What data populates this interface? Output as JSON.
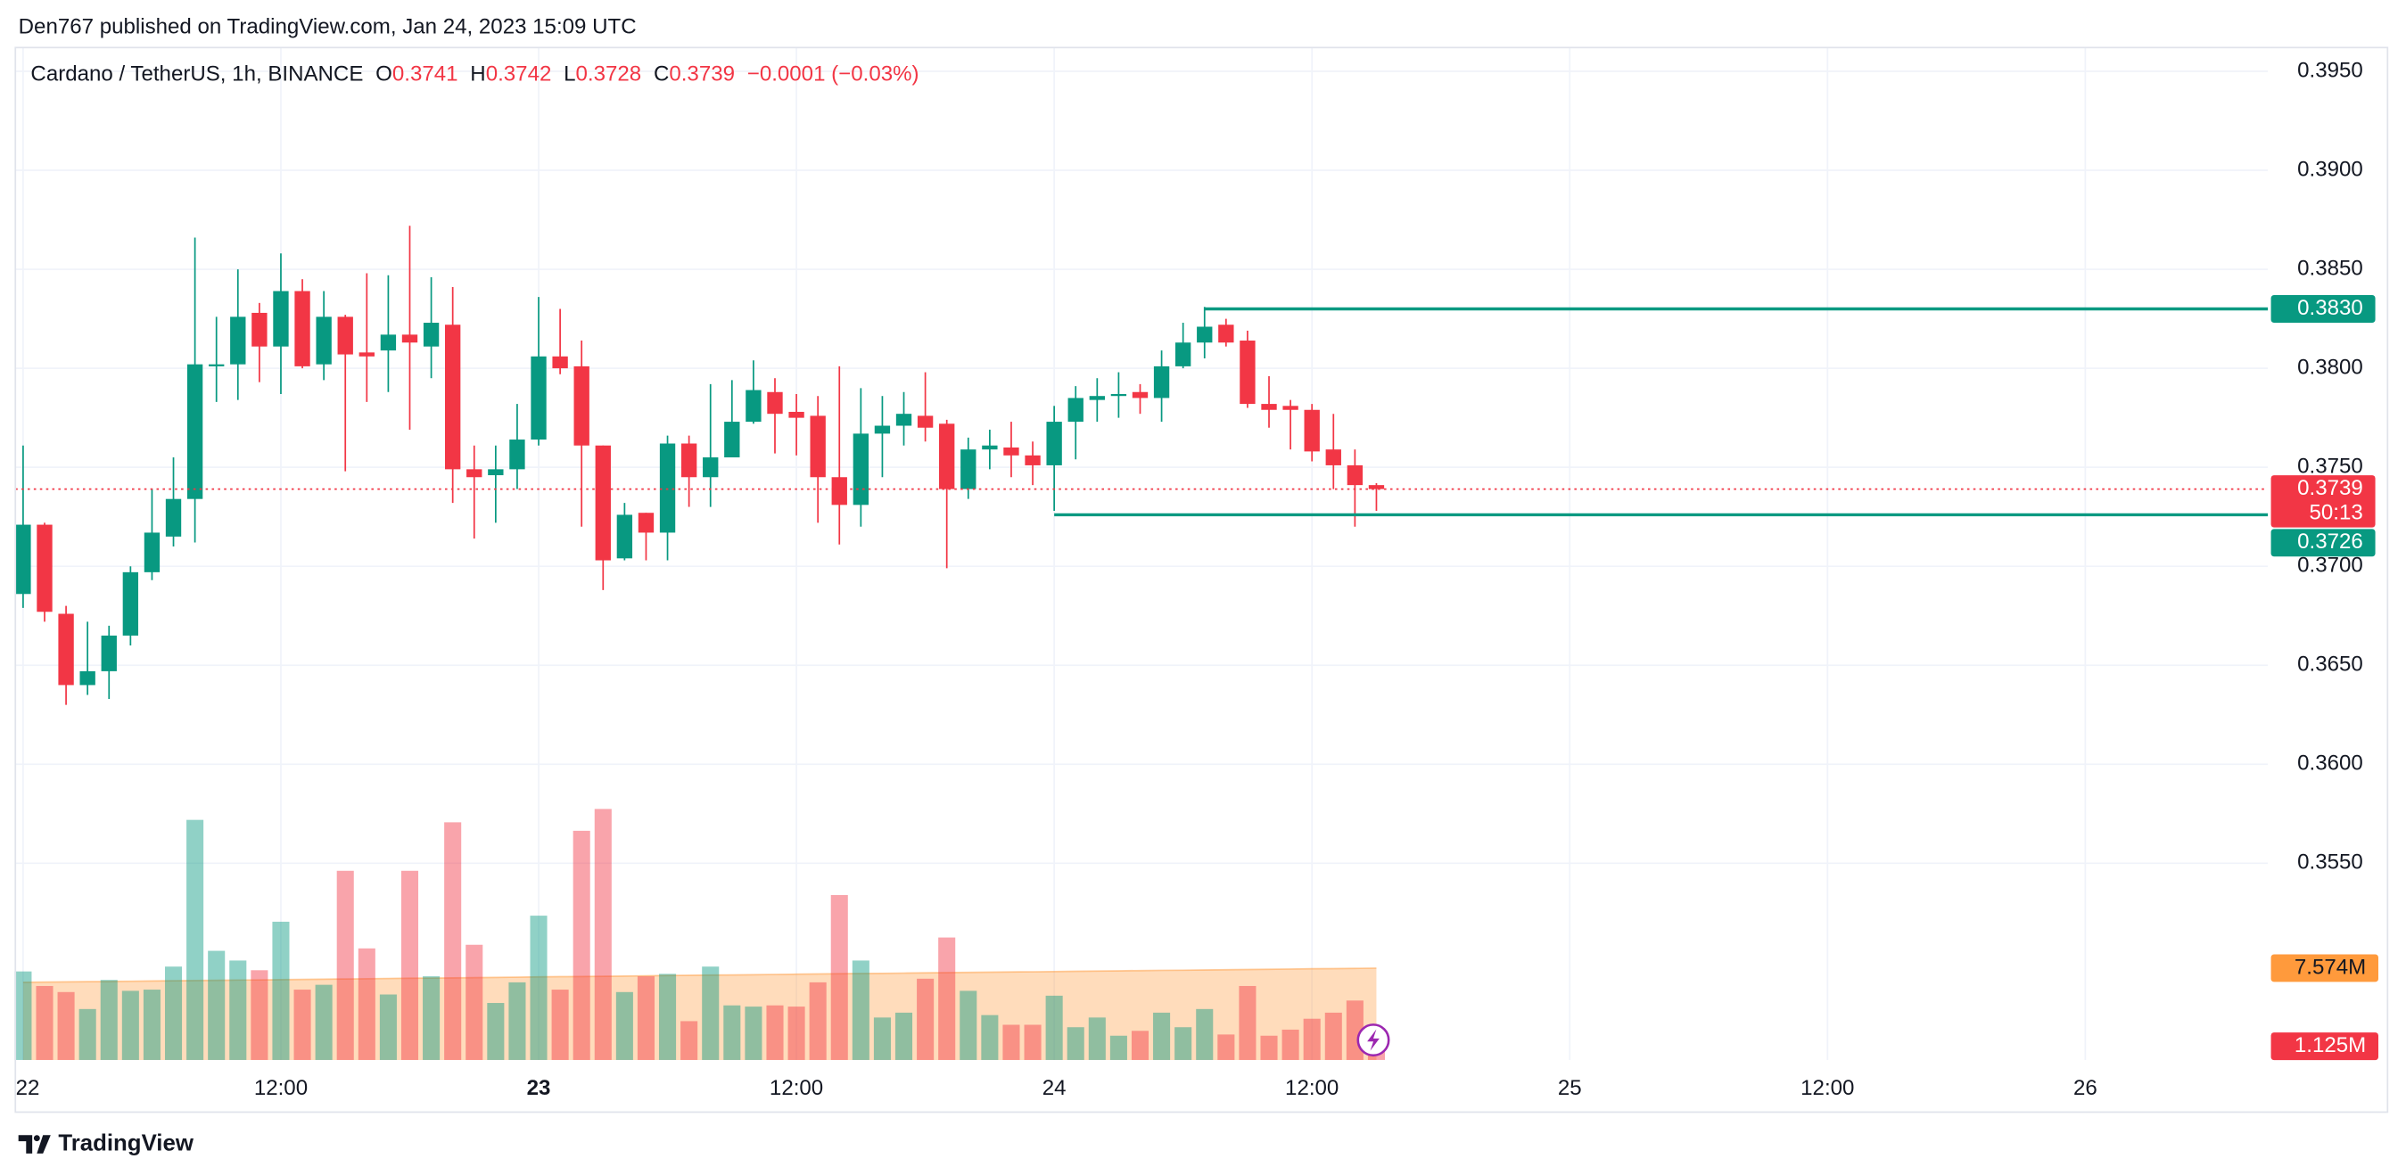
{
  "header": "Den767 published on TradingView.com, Jan 24, 2023 15:09 UTC",
  "footer": "TradingView",
  "chart_data": {
    "type": "candlestick",
    "legend": {
      "symbol": "Cardano / TetherUS, 1h, BINANCE",
      "o": "O",
      "h": "H",
      "l": "L",
      "c": "C",
      "change": "−0.0001 (−0.03%)"
    },
    "up_color": "#089981",
    "down_color": "#f23645",
    "volume_ma_color": "#ff9a3c",
    "level_color": "#089981",
    "x": [
      0,
      1,
      2,
      3,
      4,
      5,
      6,
      7,
      8,
      9,
      10,
      11,
      12,
      13,
      14,
      15,
      16,
      17,
      18,
      19,
      20,
      21,
      22,
      23,
      24,
      25,
      26,
      27,
      28,
      29,
      30,
      31,
      32,
      33,
      34,
      35,
      36,
      37,
      38,
      39,
      40,
      41,
      42,
      43,
      44,
      45,
      46,
      47,
      48,
      49,
      50,
      51,
      52,
      53,
      54,
      55,
      56,
      57,
      58,
      59,
      60,
      61,
      62,
      63
    ],
    "open": [
      0.3686,
      0.3721,
      0.3676,
      0.364,
      0.3647,
      0.3665,
      0.3697,
      0.3715,
      0.3734,
      0.3801,
      0.3802,
      0.3828,
      0.3811,
      0.3839,
      0.3802,
      0.3826,
      0.3808,
      0.3809,
      0.3817,
      0.3811,
      0.3822,
      0.3749,
      0.3746,
      0.3749,
      0.3764,
      0.3806,
      0.3801,
      0.3761,
      0.3704,
      0.3727,
      0.3717,
      0.3762,
      0.3745,
      0.3755,
      0.3773,
      0.3788,
      0.3778,
      0.3776,
      0.3745,
      0.3731,
      0.3767,
      0.3771,
      0.3776,
      0.3772,
      0.3739,
      0.3759,
      0.376,
      0.3756,
      0.3751,
      0.3773,
      0.3784,
      0.3786,
      0.3788,
      0.3785,
      0.3801,
      0.3813,
      0.3822,
      0.3814,
      0.3782,
      0.3781,
      0.3779,
      0.3759,
      0.3751,
      0.3741
    ],
    "high": [
      0.3761,
      0.3722,
      0.368,
      0.3672,
      0.367,
      0.37,
      0.3739,
      0.3755,
      0.3866,
      0.3826,
      0.385,
      0.3833,
      0.3858,
      0.3845,
      0.3839,
      0.3827,
      0.3848,
      0.3847,
      0.3872,
      0.3846,
      0.3841,
      0.3761,
      0.3761,
      0.3782,
      0.3836,
      0.383,
      0.3814,
      0.3761,
      0.3732,
      0.3727,
      0.3766,
      0.3766,
      0.3792,
      0.3794,
      0.3804,
      0.3795,
      0.3787,
      0.3786,
      0.3801,
      0.379,
      0.3786,
      0.3788,
      0.3798,
      0.3774,
      0.3765,
      0.3769,
      0.3773,
      0.3763,
      0.3781,
      0.3791,
      0.3795,
      0.3798,
      0.3792,
      0.3809,
      0.3823,
      0.3831,
      0.3825,
      0.3819,
      0.3796,
      0.3784,
      0.3782,
      0.3777,
      0.3759,
      0.3742
    ],
    "low": [
      0.3679,
      0.3672,
      0.363,
      0.3635,
      0.3633,
      0.366,
      0.3693,
      0.371,
      0.3712,
      0.3783,
      0.3784,
      0.3793,
      0.3787,
      0.38,
      0.3794,
      0.3748,
      0.3783,
      0.3788,
      0.3769,
      0.3795,
      0.3732,
      0.3714,
      0.3722,
      0.3739,
      0.3761,
      0.3797,
      0.372,
      0.3688,
      0.3703,
      0.3703,
      0.3703,
      0.373,
      0.373,
      0.3755,
      0.3772,
      0.3757,
      0.3756,
      0.3722,
      0.3711,
      0.372,
      0.3745,
      0.3761,
      0.3763,
      0.3699,
      0.3734,
      0.3749,
      0.3745,
      0.3741,
      0.3728,
      0.3754,
      0.3773,
      0.3775,
      0.3777,
      0.3773,
      0.38,
      0.3805,
      0.3811,
      0.378,
      0.377,
      0.3759,
      0.3753,
      0.3739,
      0.372,
      0.3728
    ],
    "close": [
      0.3721,
      0.3677,
      0.364,
      0.3647,
      0.3665,
      0.3697,
      0.3717,
      0.3734,
      0.3802,
      0.3802,
      0.3826,
      0.3811,
      0.3839,
      0.3801,
      0.3826,
      0.3807,
      0.3806,
      0.3817,
      0.3813,
      0.3823,
      0.3749,
      0.3745,
      0.3749,
      0.3764,
      0.3806,
      0.38,
      0.3761,
      0.3703,
      0.3726,
      0.3717,
      0.3762,
      0.3745,
      0.3755,
      0.3773,
      0.3789,
      0.3777,
      0.3775,
      0.3745,
      0.3731,
      0.3767,
      0.3771,
      0.3777,
      0.377,
      0.3739,
      0.3759,
      0.3761,
      0.3756,
      0.3751,
      0.3773,
      0.3785,
      0.3786,
      0.3787,
      0.3785,
      0.3801,
      0.3813,
      0.3821,
      0.3813,
      0.3782,
      0.3779,
      0.3779,
      0.3758,
      0.3751,
      0.3741,
      0.3739
    ],
    "volume": [
      7.3,
      6.1,
      5.6,
      4.2,
      6.6,
      5.7,
      5.8,
      7.7,
      19.8,
      9.0,
      8.2,
      7.4,
      11.4,
      5.8,
      6.2,
      15.6,
      9.2,
      5.4,
      15.6,
      6.9,
      19.6,
      9.5,
      4.7,
      6.4,
      11.9,
      5.8,
      18.9,
      20.7,
      5.6,
      6.9,
      7.1,
      3.2,
      7.7,
      4.5,
      4.4,
      4.5,
      4.4,
      6.4,
      13.6,
      8.2,
      3.5,
      3.9,
      6.7,
      10.1,
      5.7,
      3.7,
      2.9,
      2.9,
      5.3,
      2.7,
      3.5,
      2.0,
      2.4,
      3.9,
      2.7,
      4.2,
      2.1,
      6.1,
      2.0,
      2.5,
      3.4,
      3.9,
      4.9,
      1.125
    ],
    "volume_ma": [
      6.4,
      6.42,
      6.44,
      6.46,
      6.47,
      6.49,
      6.51,
      6.53,
      6.55,
      6.57,
      6.59,
      6.6,
      6.62,
      6.64,
      6.66,
      6.68,
      6.7,
      6.72,
      6.74,
      6.75,
      6.77,
      6.79,
      6.81,
      6.83,
      6.85,
      6.87,
      6.88,
      6.9,
      6.92,
      6.94,
      6.96,
      6.98,
      7.0,
      7.01,
      7.03,
      7.05,
      7.07,
      7.09,
      7.11,
      7.13,
      7.14,
      7.16,
      7.18,
      7.2,
      7.22,
      7.24,
      7.26,
      7.27,
      7.29,
      7.31,
      7.33,
      7.35,
      7.37,
      7.39,
      7.4,
      7.42,
      7.44,
      7.46,
      7.48,
      7.5,
      7.52,
      7.53,
      7.55,
      7.574
    ],
    "volume_ma_label": "7.574M",
    "last_volume_label": "1.125M",
    "countdown": "50:13",
    "levels": [
      {
        "value": 0.383,
        "label": "0.3830",
        "from_x": 55
      },
      {
        "value": 0.3726,
        "label": "0.3726",
        "from_x": 48
      }
    ],
    "xlim": [
      -0.36,
      104.5
    ],
    "xticks": [
      {
        "value": 0,
        "label": "22"
      },
      {
        "value": 12,
        "label": "12:00"
      },
      {
        "value": 24,
        "label": "23",
        "bold": true
      },
      {
        "value": 36,
        "label": "12:00"
      },
      {
        "value": 48,
        "label": "24"
      },
      {
        "value": 60,
        "label": "12:00"
      },
      {
        "value": 72,
        "label": "25"
      },
      {
        "value": 84,
        "label": "12:00"
      },
      {
        "value": 96,
        "label": "26"
      }
    ],
    "ylim": [
      0.3446,
      0.3962
    ],
    "yticks": [
      {
        "value": 0.355,
        "label": "0.3550"
      },
      {
        "value": 0.36,
        "label": "0.3600"
      },
      {
        "value": 0.365,
        "label": "0.3650"
      },
      {
        "value": 0.37,
        "label": "0.3700"
      },
      {
        "value": 0.375,
        "label": "0.3750"
      },
      {
        "value": 0.38,
        "label": "0.3800"
      },
      {
        "value": 0.385,
        "label": "0.3850"
      },
      {
        "value": 0.39,
        "label": "0.3900"
      },
      {
        "value": 0.395,
        "label": "0.3950"
      }
    ],
    "vlim": [
      0,
      21
    ],
    "grid": true
  }
}
